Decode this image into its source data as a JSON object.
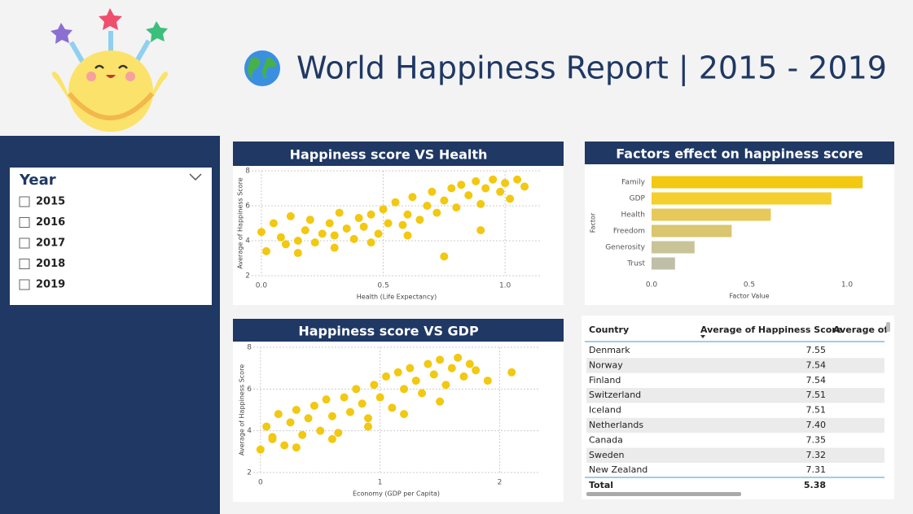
{
  "header": {
    "title": "World Happiness Report | 2015 - 2019"
  },
  "slicer": {
    "title": "Year",
    "items": [
      "2015",
      "2016",
      "2017",
      "2018",
      "2019"
    ]
  },
  "chart_data": [
    {
      "type": "scatter",
      "title": "Happiness score VS Health",
      "x_label": "Health (Life Expectancy)",
      "y_label": "Average of Happiness Score",
      "color": "#f2c811",
      "grid": true,
      "xlim": [
        -0.04,
        1.15
      ],
      "ylim": [
        2,
        8
      ],
      "xticks": [
        {
          "value": 0,
          "label": "0.0"
        },
        {
          "value": 0.5,
          "label": "0.5"
        },
        {
          "value": 1,
          "label": "1.0"
        }
      ],
      "yticks": [
        2,
        4,
        6,
        8
      ],
      "x": [
        0.0,
        0.02,
        0.05,
        0.08,
        0.1,
        0.12,
        0.15,
        0.18,
        0.2,
        0.22,
        0.25,
        0.28,
        0.3,
        0.32,
        0.35,
        0.38,
        0.4,
        0.42,
        0.45,
        0.48,
        0.5,
        0.52,
        0.55,
        0.58,
        0.6,
        0.62,
        0.65,
        0.68,
        0.7,
        0.72,
        0.75,
        0.78,
        0.8,
        0.82,
        0.85,
        0.88,
        0.9,
        0.92,
        0.95,
        0.98,
        1.0,
        1.02,
        1.05,
        1.08,
        0.3,
        0.45,
        0.6,
        0.75,
        0.9,
        0.15
      ],
      "values": [
        4.5,
        3.4,
        5.0,
        4.2,
        3.8,
        5.4,
        4.0,
        4.6,
        5.2,
        3.9,
        4.4,
        5.0,
        4.3,
        5.6,
        4.7,
        4.1,
        5.3,
        4.8,
        5.5,
        4.4,
        5.8,
        5.0,
        6.2,
        4.9,
        5.5,
        6.5,
        5.2,
        6.0,
        6.8,
        5.6,
        6.3,
        7.0,
        5.9,
        7.2,
        6.6,
        7.4,
        6.1,
        7.0,
        7.5,
        6.8,
        7.3,
        6.4,
        7.5,
        7.1,
        3.6,
        3.9,
        4.3,
        3.1,
        4.6,
        3.3
      ]
    },
    {
      "type": "scatter",
      "title": "Happiness score VS GDP",
      "x_label": "Economy (GDP per Capita)",
      "y_label": "Average of Happiness Score",
      "color": "#f2c811",
      "grid": true,
      "xlim": [
        -0.06,
        2.33
      ],
      "ylim": [
        2,
        8
      ],
      "xticks": [
        0,
        1,
        2
      ],
      "yticks": [
        2,
        4,
        6,
        8
      ],
      "x": [
        0,
        0.05,
        0.1,
        0.15,
        0.2,
        0.25,
        0.3,
        0.35,
        0.4,
        0.45,
        0.5,
        0.55,
        0.6,
        0.65,
        0.7,
        0.75,
        0.8,
        0.85,
        0.9,
        0.95,
        1.0,
        1.05,
        1.1,
        1.15,
        1.2,
        1.25,
        1.3,
        1.35,
        1.4,
        1.45,
        1.5,
        1.55,
        1.6,
        1.65,
        1.7,
        1.75,
        1.8,
        1.9,
        2.1,
        0.3,
        0.6,
        0.9,
        1.2,
        1.5,
        0.1
      ],
      "values": [
        3.1,
        4.2,
        3.6,
        4.8,
        3.3,
        4.4,
        5.0,
        3.8,
        4.6,
        5.2,
        4.0,
        5.5,
        4.7,
        3.9,
        5.6,
        4.9,
        6.0,
        5.3,
        4.6,
        6.2,
        5.6,
        6.6,
        5.1,
        6.8,
        6.0,
        7.0,
        6.4,
        5.8,
        7.2,
        6.7,
        7.4,
        6.2,
        7.0,
        7.5,
        6.6,
        7.2,
        6.9,
        6.4,
        6.8,
        3.2,
        3.6,
        4.2,
        4.8,
        5.4,
        3.7
      ]
    },
    {
      "type": "barh",
      "title": "Factors effect on happiness score",
      "x_label": "Factor Value",
      "y_label": "Factor",
      "categories": [
        "Family",
        "GDP",
        "Health",
        "Freedom",
        "Generosity",
        "Trust"
      ],
      "values": [
        1.08,
        0.92,
        0.61,
        0.41,
        0.22,
        0.12
      ],
      "colors": [
        "#f2c811",
        "#f4cf2e",
        "#e6c95a",
        "#d9c66e",
        "#c9c497",
        "#bfbfa8"
      ],
      "xlim": [
        0,
        1.2
      ],
      "xticks": [
        {
          "value": 0,
          "label": "0.0"
        },
        {
          "value": 0.5,
          "label": "0.5"
        },
        {
          "value": 1,
          "label": "1.0"
        }
      ]
    }
  ],
  "table": {
    "columns": [
      "Country",
      "Average of Happiness Score",
      "Average of"
    ],
    "rows": [
      [
        "Denmark",
        "7.55"
      ],
      [
        "Norway",
        "7.54"
      ],
      [
        "Finland",
        "7.54"
      ],
      [
        "Switzerland",
        "7.51"
      ],
      [
        "Iceland",
        "7.51"
      ],
      [
        "Netherlands",
        "7.40"
      ],
      [
        "Canada",
        "7.35"
      ],
      [
        "Sweden",
        "7.32"
      ],
      [
        "New Zealand",
        "7.31"
      ]
    ],
    "total": [
      "Total",
      "5.38"
    ]
  }
}
